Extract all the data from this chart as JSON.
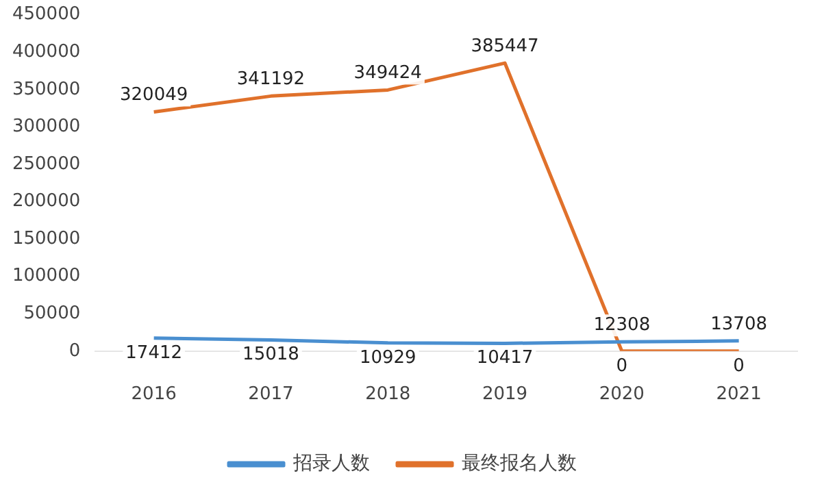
{
  "chart_data": {
    "type": "line",
    "categories": [
      "2016",
      "2017",
      "2018",
      "2019",
      "2020",
      "2021"
    ],
    "series": [
      {
        "name": "招录人数",
        "color": "#4a8fd0",
        "values": [
          17412,
          15018,
          10929,
          10417,
          12308,
          13708
        ]
      },
      {
        "name": "最终报名人数",
        "color": "#e0712b",
        "values": [
          320049,
          341192,
          349424,
          385447,
          0,
          0
        ]
      }
    ],
    "ylim": [
      0,
      450000
    ],
    "yticks": [
      0,
      50000,
      100000,
      150000,
      200000,
      250000,
      300000,
      350000,
      400000,
      450000
    ],
    "grid": false,
    "legend": "bottom",
    "marker": "none",
    "data_labels": true
  }
}
